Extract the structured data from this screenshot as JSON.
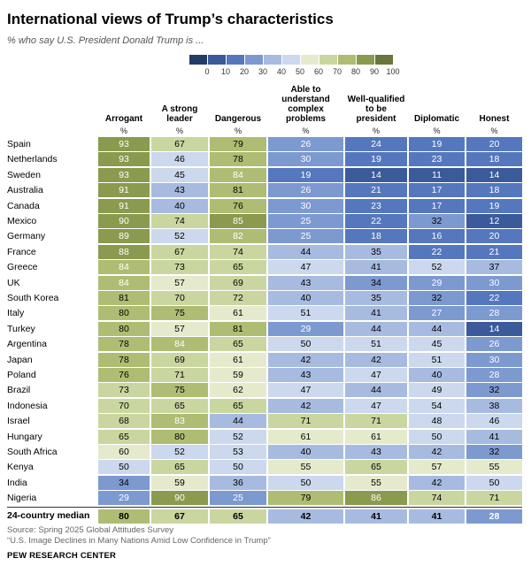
{
  "title": "International views of Trump’s characteristics",
  "subtitle": "% who say U.S. President Donald Trump is ...",
  "legend": {
    "ticks": [
      "0",
      "10",
      "20",
      "30",
      "40",
      "50",
      "60",
      "70",
      "80",
      "90",
      "100"
    ]
  },
  "colors": {
    "bins": [
      "#243b66",
      "#3a5a9a",
      "#5577bd",
      "#7c99d0",
      "#a7bbe0",
      "#cbd8ed",
      "#e6eacd",
      "#cad6a0",
      "#aebd73",
      "#8a9a4e",
      "#6b763a"
    ]
  },
  "pct_label": "%",
  "chart_data": {
    "type": "heatmap",
    "title": "International views of Trump’s characteristics",
    "subtitle": "% who say U.S. President Donald Trump is ...",
    "columns": [
      "Arrogant",
      "A strong leader",
      "Dangerous",
      "Able to understand complex problems",
      "Well-qualified to be president",
      "Diplomatic",
      "Honest"
    ],
    "rows": [
      {
        "country": "Spain",
        "values": [
          93,
          67,
          79,
          26,
          24,
          19,
          20
        ]
      },
      {
        "country": "Netherlands",
        "values": [
          93,
          46,
          78,
          30,
          19,
          23,
          18
        ]
      },
      {
        "country": "Sweden",
        "values": [
          93,
          45,
          84,
          19,
          14,
          11,
          14
        ]
      },
      {
        "country": "Australia",
        "values": [
          91,
          43,
          81,
          26,
          21,
          17,
          18
        ]
      },
      {
        "country": "Canada",
        "values": [
          91,
          40,
          76,
          30,
          23,
          17,
          19
        ]
      },
      {
        "country": "Mexico",
        "values": [
          90,
          74,
          85,
          25,
          22,
          32,
          12
        ]
      },
      {
        "country": "Germany",
        "values": [
          89,
          52,
          82,
          25,
          18,
          16,
          20
        ]
      },
      {
        "country": "France",
        "values": [
          88,
          67,
          74,
          44,
          35,
          22,
          21
        ]
      },
      {
        "country": "Greece",
        "values": [
          84,
          73,
          65,
          47,
          41,
          52,
          37
        ]
      },
      {
        "country": "UK",
        "values": [
          84,
          57,
          69,
          43,
          34,
          29,
          30
        ]
      },
      {
        "country": "South Korea",
        "values": [
          81,
          70,
          72,
          40,
          35,
          32,
          22
        ]
      },
      {
        "country": "Italy",
        "values": [
          80,
          75,
          61,
          51,
          41,
          27,
          28
        ]
      },
      {
        "country": "Turkey",
        "values": [
          80,
          57,
          81,
          29,
          44,
          44,
          14
        ]
      },
      {
        "country": "Argentina",
        "values": [
          78,
          84,
          65,
          50,
          51,
          45,
          26
        ]
      },
      {
        "country": "Japan",
        "values": [
          78,
          69,
          61,
          42,
          42,
          51,
          30
        ]
      },
      {
        "country": "Poland",
        "values": [
          76,
          71,
          59,
          43,
          47,
          40,
          28
        ]
      },
      {
        "country": "Brazil",
        "values": [
          73,
          75,
          62,
          47,
          44,
          49,
          32
        ]
      },
      {
        "country": "Indonesia",
        "values": [
          70,
          65,
          65,
          42,
          47,
          54,
          38
        ]
      },
      {
        "country": "Israel",
        "values": [
          68,
          83,
          44,
          71,
          71,
          48,
          46
        ]
      },
      {
        "country": "Hungary",
        "values": [
          65,
          80,
          52,
          61,
          61,
          50,
          41
        ]
      },
      {
        "country": "South Africa",
        "values": [
          60,
          52,
          53,
          40,
          43,
          42,
          32
        ]
      },
      {
        "country": "Kenya",
        "values": [
          50,
          65,
          50,
          55,
          65,
          57,
          55
        ]
      },
      {
        "country": "India",
        "values": [
          34,
          59,
          36,
          50,
          55,
          42,
          50
        ]
      },
      {
        "country": "Nigeria",
        "values": [
          29,
          90,
          25,
          79,
          86,
          74,
          71
        ]
      }
    ],
    "median": {
      "label": "24-country median",
      "values": [
        80,
        67,
        65,
        42,
        41,
        41,
        28
      ]
    },
    "color_range": [
      0,
      100
    ]
  },
  "source": {
    "line1": "Source: Spring 2025 Global Attitudes Survey",
    "line2": "“U.S. Image Declines in Many Nations Amid Low Confidence in Trump”"
  },
  "brand": "PEW RESEARCH CENTER"
}
